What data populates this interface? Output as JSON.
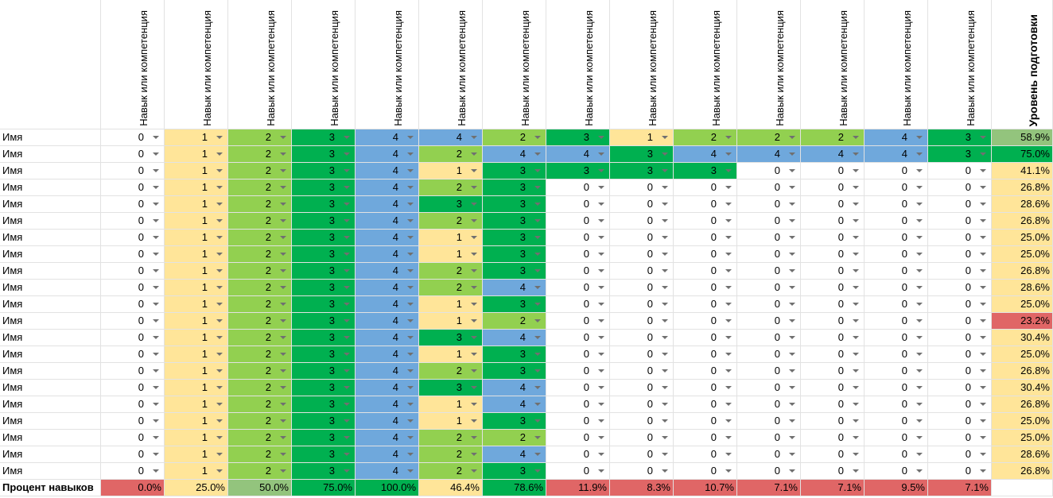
{
  "header": {
    "skill_label": "Навык или компетенция",
    "readiness_label": "Уровень подготовки"
  },
  "rows": [
    {
      "name": "Имя",
      "values": [
        0,
        1,
        2,
        3,
        4,
        4,
        2,
        3,
        1,
        2,
        2,
        2,
        4,
        3
      ],
      "pct": "58.9%",
      "pct_class": "pm"
    },
    {
      "name": "Имя",
      "values": [
        0,
        1,
        2,
        3,
        4,
        2,
        4,
        4,
        3,
        4,
        4,
        4,
        4,
        3
      ],
      "pct": "75.0%",
      "pct_class": "ph"
    },
    {
      "name": "Имя",
      "values": [
        0,
        1,
        2,
        3,
        4,
        1,
        3,
        3,
        3,
        3,
        0,
        0,
        0,
        0
      ],
      "pct": "41.1%",
      "pct_class": "pl"
    },
    {
      "name": "Имя",
      "values": [
        0,
        1,
        2,
        3,
        4,
        2,
        3,
        0,
        0,
        0,
        0,
        0,
        0,
        0
      ],
      "pct": "26.8%",
      "pct_class": "pl"
    },
    {
      "name": "Имя",
      "values": [
        0,
        1,
        2,
        3,
        4,
        3,
        3,
        0,
        0,
        0,
        0,
        0,
        0,
        0
      ],
      "pct": "28.6%",
      "pct_class": "pl"
    },
    {
      "name": "Имя",
      "values": [
        0,
        1,
        2,
        3,
        4,
        2,
        3,
        0,
        0,
        0,
        0,
        0,
        0,
        0
      ],
      "pct": "26.8%",
      "pct_class": "pl"
    },
    {
      "name": "Имя",
      "values": [
        0,
        1,
        2,
        3,
        4,
        1,
        3,
        0,
        0,
        0,
        0,
        0,
        0,
        0
      ],
      "pct": "25.0%",
      "pct_class": "pl"
    },
    {
      "name": "Имя",
      "values": [
        0,
        1,
        2,
        3,
        4,
        1,
        3,
        0,
        0,
        0,
        0,
        0,
        0,
        0
      ],
      "pct": "25.0%",
      "pct_class": "pl"
    },
    {
      "name": "Имя",
      "values": [
        0,
        1,
        2,
        3,
        4,
        2,
        3,
        0,
        0,
        0,
        0,
        0,
        0,
        0
      ],
      "pct": "26.8%",
      "pct_class": "pl"
    },
    {
      "name": "Имя",
      "values": [
        0,
        1,
        2,
        3,
        4,
        2,
        4,
        0,
        0,
        0,
        0,
        0,
        0,
        0
      ],
      "pct": "28.6%",
      "pct_class": "pl"
    },
    {
      "name": "Имя",
      "values": [
        0,
        1,
        2,
        3,
        4,
        1,
        3,
        0,
        0,
        0,
        0,
        0,
        0,
        0
      ],
      "pct": "25.0%",
      "pct_class": "pl"
    },
    {
      "name": "Имя",
      "values": [
        0,
        1,
        2,
        3,
        4,
        1,
        2,
        0,
        0,
        0,
        0,
        0,
        0,
        0
      ],
      "pct": "23.2%",
      "pct_class": "pr"
    },
    {
      "name": "Имя",
      "values": [
        0,
        1,
        2,
        3,
        4,
        3,
        4,
        0,
        0,
        0,
        0,
        0,
        0,
        0
      ],
      "pct": "30.4%",
      "pct_class": "pl"
    },
    {
      "name": "Имя",
      "values": [
        0,
        1,
        2,
        3,
        4,
        1,
        3,
        0,
        0,
        0,
        0,
        0,
        0,
        0
      ],
      "pct": "25.0%",
      "pct_class": "pl"
    },
    {
      "name": "Имя",
      "values": [
        0,
        1,
        2,
        3,
        4,
        2,
        3,
        0,
        0,
        0,
        0,
        0,
        0,
        0
      ],
      "pct": "26.8%",
      "pct_class": "pl"
    },
    {
      "name": "Имя",
      "values": [
        0,
        1,
        2,
        3,
        4,
        3,
        4,
        0,
        0,
        0,
        0,
        0,
        0,
        0
      ],
      "pct": "30.4%",
      "pct_class": "pl"
    },
    {
      "name": "Имя",
      "values": [
        0,
        1,
        2,
        3,
        4,
        1,
        4,
        0,
        0,
        0,
        0,
        0,
        0,
        0
      ],
      "pct": "26.8%",
      "pct_class": "pl"
    },
    {
      "name": "Имя",
      "values": [
        0,
        1,
        2,
        3,
        4,
        1,
        3,
        0,
        0,
        0,
        0,
        0,
        0,
        0
      ],
      "pct": "25.0%",
      "pct_class": "pl"
    },
    {
      "name": "Имя",
      "values": [
        0,
        1,
        2,
        3,
        4,
        2,
        2,
        0,
        0,
        0,
        0,
        0,
        0,
        0
      ],
      "pct": "25.0%",
      "pct_class": "pl"
    },
    {
      "name": "Имя",
      "values": [
        0,
        1,
        2,
        3,
        4,
        2,
        4,
        0,
        0,
        0,
        0,
        0,
        0,
        0
      ],
      "pct": "28.6%",
      "pct_class": "pl"
    },
    {
      "name": "Имя",
      "values": [
        0,
        1,
        2,
        3,
        4,
        2,
        3,
        0,
        0,
        0,
        0,
        0,
        0,
        0
      ],
      "pct": "26.8%",
      "pct_class": "pl"
    }
  ],
  "summary": {
    "label": "Процент навыков",
    "values": [
      "0.0%",
      "25.0%",
      "50.0%",
      "75.0%",
      "100.0%",
      "46.4%",
      "78.6%",
      "11.9%",
      "8.3%",
      "10.7%",
      "7.1%",
      "7.1%",
      "9.5%",
      "7.1%"
    ],
    "classes": [
      "pr",
      "pl",
      "pm",
      "ph",
      "ph",
      "pl",
      "ph",
      "pr",
      "pr",
      "pr",
      "pr",
      "pr",
      "pr",
      "pr"
    ]
  },
  "colors": {
    "level_0": "#ffffff",
    "level_1": "#ffe599",
    "level_2": "#92d050",
    "level_3": "#00b050",
    "level_4": "#6fa8dc",
    "pct_low": "#ffe599",
    "pct_mid": "#93c47d",
    "pct_high": "#00b050",
    "pct_bad": "#e06666"
  },
  "dropdown_icon": "chevron-down-icon"
}
